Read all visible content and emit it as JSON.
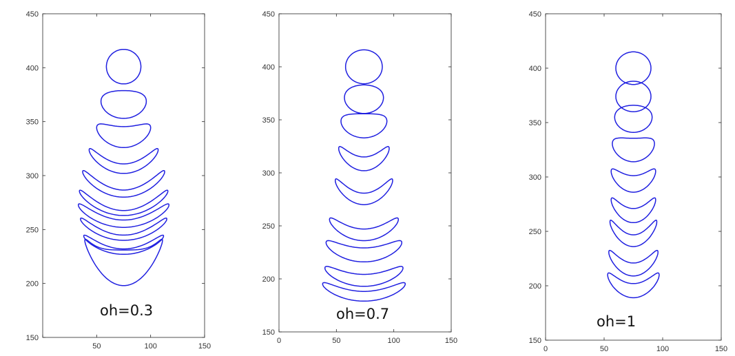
{
  "chart_data": [
    {
      "type": "line",
      "annotation": "oh=0.3",
      "xlim": [
        0,
        150
      ],
      "ylim": [
        150,
        450
      ],
      "xticks": [
        "",
        "50",
        "100",
        "150"
      ],
      "yticks": [
        "150",
        "200",
        "250",
        "300",
        "350",
        "400",
        "450"
      ],
      "line_color": "#1f1fe0",
      "grid": false,
      "series": [
        {
          "center": [
            75,
            401
          ],
          "shape": "circle",
          "rx": 16,
          "ry": 16,
          "d": 0
        },
        {
          "center": [
            75,
            367
          ],
          "shape": "bowl",
          "rx": 21,
          "ry": 14,
          "d": 2
        },
        {
          "center": [
            75,
            339
          ],
          "shape": "bowl",
          "rx": 25,
          "ry": 13,
          "d": 6
        },
        {
          "center": [
            75,
            313
          ],
          "shape": "bowl",
          "rx": 32,
          "ry": 11,
          "d": 12
        },
        {
          "center": [
            75,
            291
          ],
          "shape": "bowl",
          "rx": 38,
          "ry": 11,
          "d": 14
        },
        {
          "center": [
            75,
            273
          ],
          "shape": "bowl",
          "rx": 41,
          "ry": 10,
          "d": 14
        },
        {
          "center": [
            75,
            262
          ],
          "shape": "bowl",
          "rx": 42,
          "ry": 10,
          "d": 12
        },
        {
          "center": [
            75,
            249
          ],
          "shape": "bowl",
          "rx": 40,
          "ry": 9,
          "d": 12
        },
        {
          "center": [
            75,
            235
          ],
          "shape": "bowl",
          "rx": 37,
          "ry": 8,
          "d": 10
        },
        {
          "center": [
            75,
            222
          ],
          "shape": "drop",
          "rx": 36,
          "ry": 12,
          "d": 0
        }
      ]
    },
    {
      "type": "line",
      "annotation": "oh=0.7",
      "xlim": [
        0,
        150
      ],
      "ylim": [
        150,
        450
      ],
      "xticks": [
        "0",
        "50",
        "100",
        "150"
      ],
      "yticks": [
        "150",
        "200",
        "250",
        "300",
        "350",
        "400",
        "450"
      ],
      "line_color": "#1f1fe0",
      "grid": false,
      "series": [
        {
          "center": [
            74,
            400
          ],
          "shape": "circle",
          "rx": 16,
          "ry": 16,
          "d": 0
        },
        {
          "center": [
            74,
            370
          ],
          "shape": "bowl",
          "rx": 17,
          "ry": 14,
          "d": 1
        },
        {
          "center": [
            74,
            346
          ],
          "shape": "bowl",
          "rx": 20,
          "ry": 13,
          "d": 3
        },
        {
          "center": [
            74,
            314
          ],
          "shape": "bowl",
          "rx": 22,
          "ry": 12,
          "d": 10
        },
        {
          "center": [
            74,
            282
          ],
          "shape": "bowl",
          "rx": 25,
          "ry": 12,
          "d": 12
        },
        {
          "center": [
            74,
            247
          ],
          "shape": "bowl",
          "rx": 30,
          "ry": 11,
          "d": 10
        },
        {
          "center": [
            74,
            227
          ],
          "shape": "bowl",
          "rx": 33,
          "ry": 11,
          "d": 8
        },
        {
          "center": [
            74,
            203
          ],
          "shape": "bowl",
          "rx": 34,
          "ry": 10,
          "d": 8
        },
        {
          "center": [
            74,
            188
          ],
          "shape": "bowl",
          "rx": 36,
          "ry": 9,
          "d": 8
        }
      ]
    },
    {
      "type": "line",
      "annotation": "oh=1",
      "xlim": [
        0,
        150
      ],
      "ylim": [
        150,
        450
      ],
      "xticks": [
        "0",
        "50",
        "100",
        "150"
      ],
      "yticks": [
        "150",
        "200",
        "250",
        "300",
        "350",
        "400",
        "450"
      ],
      "line_color": "#1f1fe0",
      "grid": false,
      "series": [
        {
          "center": [
            75,
            400
          ],
          "shape": "circle",
          "rx": 15,
          "ry": 15,
          "d": 0
        },
        {
          "center": [
            75,
            374
          ],
          "shape": "circle",
          "rx": 15,
          "ry": 14,
          "d": 0
        },
        {
          "center": [
            75,
            354
          ],
          "shape": "bowl",
          "rx": 16,
          "ry": 13,
          "d": 1
        },
        {
          "center": [
            75,
            327
          ],
          "shape": "bowl",
          "rx": 18,
          "ry": 13,
          "d": 4
        },
        {
          "center": [
            75,
            298
          ],
          "shape": "bowl",
          "rx": 19,
          "ry": 12,
          "d": 8
        },
        {
          "center": [
            75,
            270
          ],
          "shape": "bowl",
          "rx": 19,
          "ry": 12,
          "d": 10
        },
        {
          "center": [
            75,
            248
          ],
          "shape": "bowl",
          "rx": 20,
          "ry": 12,
          "d": 12
        },
        {
          "center": [
            75,
            221
          ],
          "shape": "bowl",
          "rx": 21,
          "ry": 12,
          "d": 11
        },
        {
          "center": [
            75,
            201
          ],
          "shape": "bowl",
          "rx": 22,
          "ry": 12,
          "d": 10
        }
      ]
    }
  ]
}
